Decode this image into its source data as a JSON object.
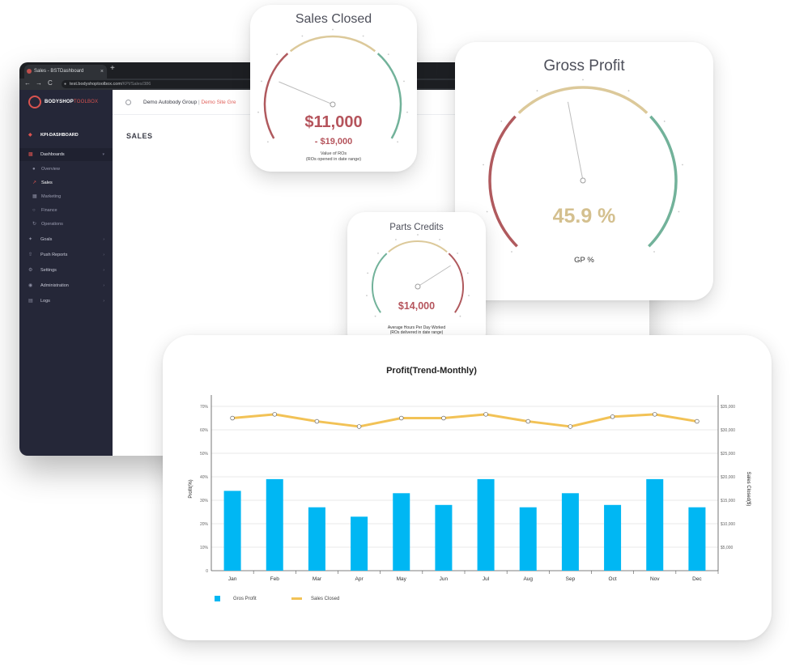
{
  "browser": {
    "tab_title": "Sales - BSTDashboard",
    "close_glyph": "×",
    "new_tab_glyph": "+",
    "nav": {
      "back": "←",
      "forward": "→",
      "reload": "C"
    },
    "url_host": "test.bodyshoptoolbox.com",
    "url_path": "/KPI/Sales/386"
  },
  "app": {
    "logo_main": "BODYSHOP",
    "logo_accent": "TOOLBOX",
    "group_name": "Demo Autobody Group",
    "separator": "|",
    "site_name": "Demo Site Gre",
    "page_title": "SALES"
  },
  "sidebar": {
    "kpi": "KPI-DASHBOARD",
    "items": [
      {
        "label": "Dashboards",
        "icon": "dashboard-icon"
      },
      {
        "label": "Overview",
        "icon": "overview-icon"
      },
      {
        "label": "Sales",
        "icon": "sales-icon"
      },
      {
        "label": "Marketing",
        "icon": "marketing-icon"
      },
      {
        "label": "Finance",
        "icon": "finance-icon"
      },
      {
        "label": "Operations",
        "icon": "operations-icon"
      },
      {
        "label": "Goals",
        "icon": "goals-icon"
      },
      {
        "label": "Push Reports",
        "icon": "push-reports-icon"
      },
      {
        "label": "Settings",
        "icon": "settings-icon"
      },
      {
        "label": "Administration",
        "icon": "administration-icon"
      },
      {
        "label": "Logs",
        "icon": "logs-icon"
      }
    ]
  },
  "gauges": {
    "sales_closed": {
      "title": "Sales Closed",
      "value": "$11,000",
      "sub_value": "- $19,000",
      "caption_line1": "Value of ROs",
      "caption_line2": "(ROs opened in date range)",
      "needle_fraction": 0.22
    },
    "gross_profit": {
      "title": "Gross Profit",
      "value": "45.9 %",
      "caption": "GP %",
      "needle_fraction": 0.46
    },
    "parts_credits": {
      "title": "Parts Credits",
      "value": "$14,000",
      "caption_line1": "Average Hours Per Day Worked",
      "caption_line2": "(ROs delivered in date range)",
      "needle_fraction": 0.73
    }
  },
  "colors": {
    "red": "#b05a5e",
    "gold": "#dcc99a",
    "green": "#72b29a",
    "value_red": "#b5545c",
    "value_gold": "#d4c08f",
    "bar": "#00b7f3",
    "line": "#f2c256",
    "sidebar": "#252738"
  },
  "chart_data": {
    "type": "bar",
    "title": "Profit(Trend-Monthly)",
    "categories": [
      "Jan",
      "Feb",
      "Mar",
      "Apr",
      "May",
      "Jun",
      "Jul",
      "Aug",
      "Sep",
      "Oct",
      "Nov",
      "Dec"
    ],
    "series": [
      {
        "name": "Gros Profit",
        "type": "bar",
        "axis": "left",
        "values": [
          34,
          39,
          27,
          23,
          33,
          28,
          39,
          27,
          33,
          28,
          39,
          27
        ]
      },
      {
        "name": "Sales Closed",
        "type": "line",
        "axis": "right",
        "values": [
          32500,
          33300,
          31800,
          30700,
          32500,
          32500,
          33300,
          31800,
          30700,
          32800,
          33300,
          31800
        ]
      }
    ],
    "ylabel": "Profit(%)",
    "ylabel_right": "Sales Closed($)",
    "ylim": [
      0,
      70
    ],
    "ylim_right": [
      0,
      35000
    ],
    "yticks": [
      "0",
      "10%",
      "20%",
      "30%",
      "40%",
      "50%",
      "60%",
      "70%"
    ],
    "yticks_right": [
      "",
      "$5,000",
      "$10,000",
      "$15,000",
      "$20,000",
      "$25,000",
      "$30,000",
      "$35,000"
    ],
    "grid": true,
    "legend": "bottom-left"
  }
}
